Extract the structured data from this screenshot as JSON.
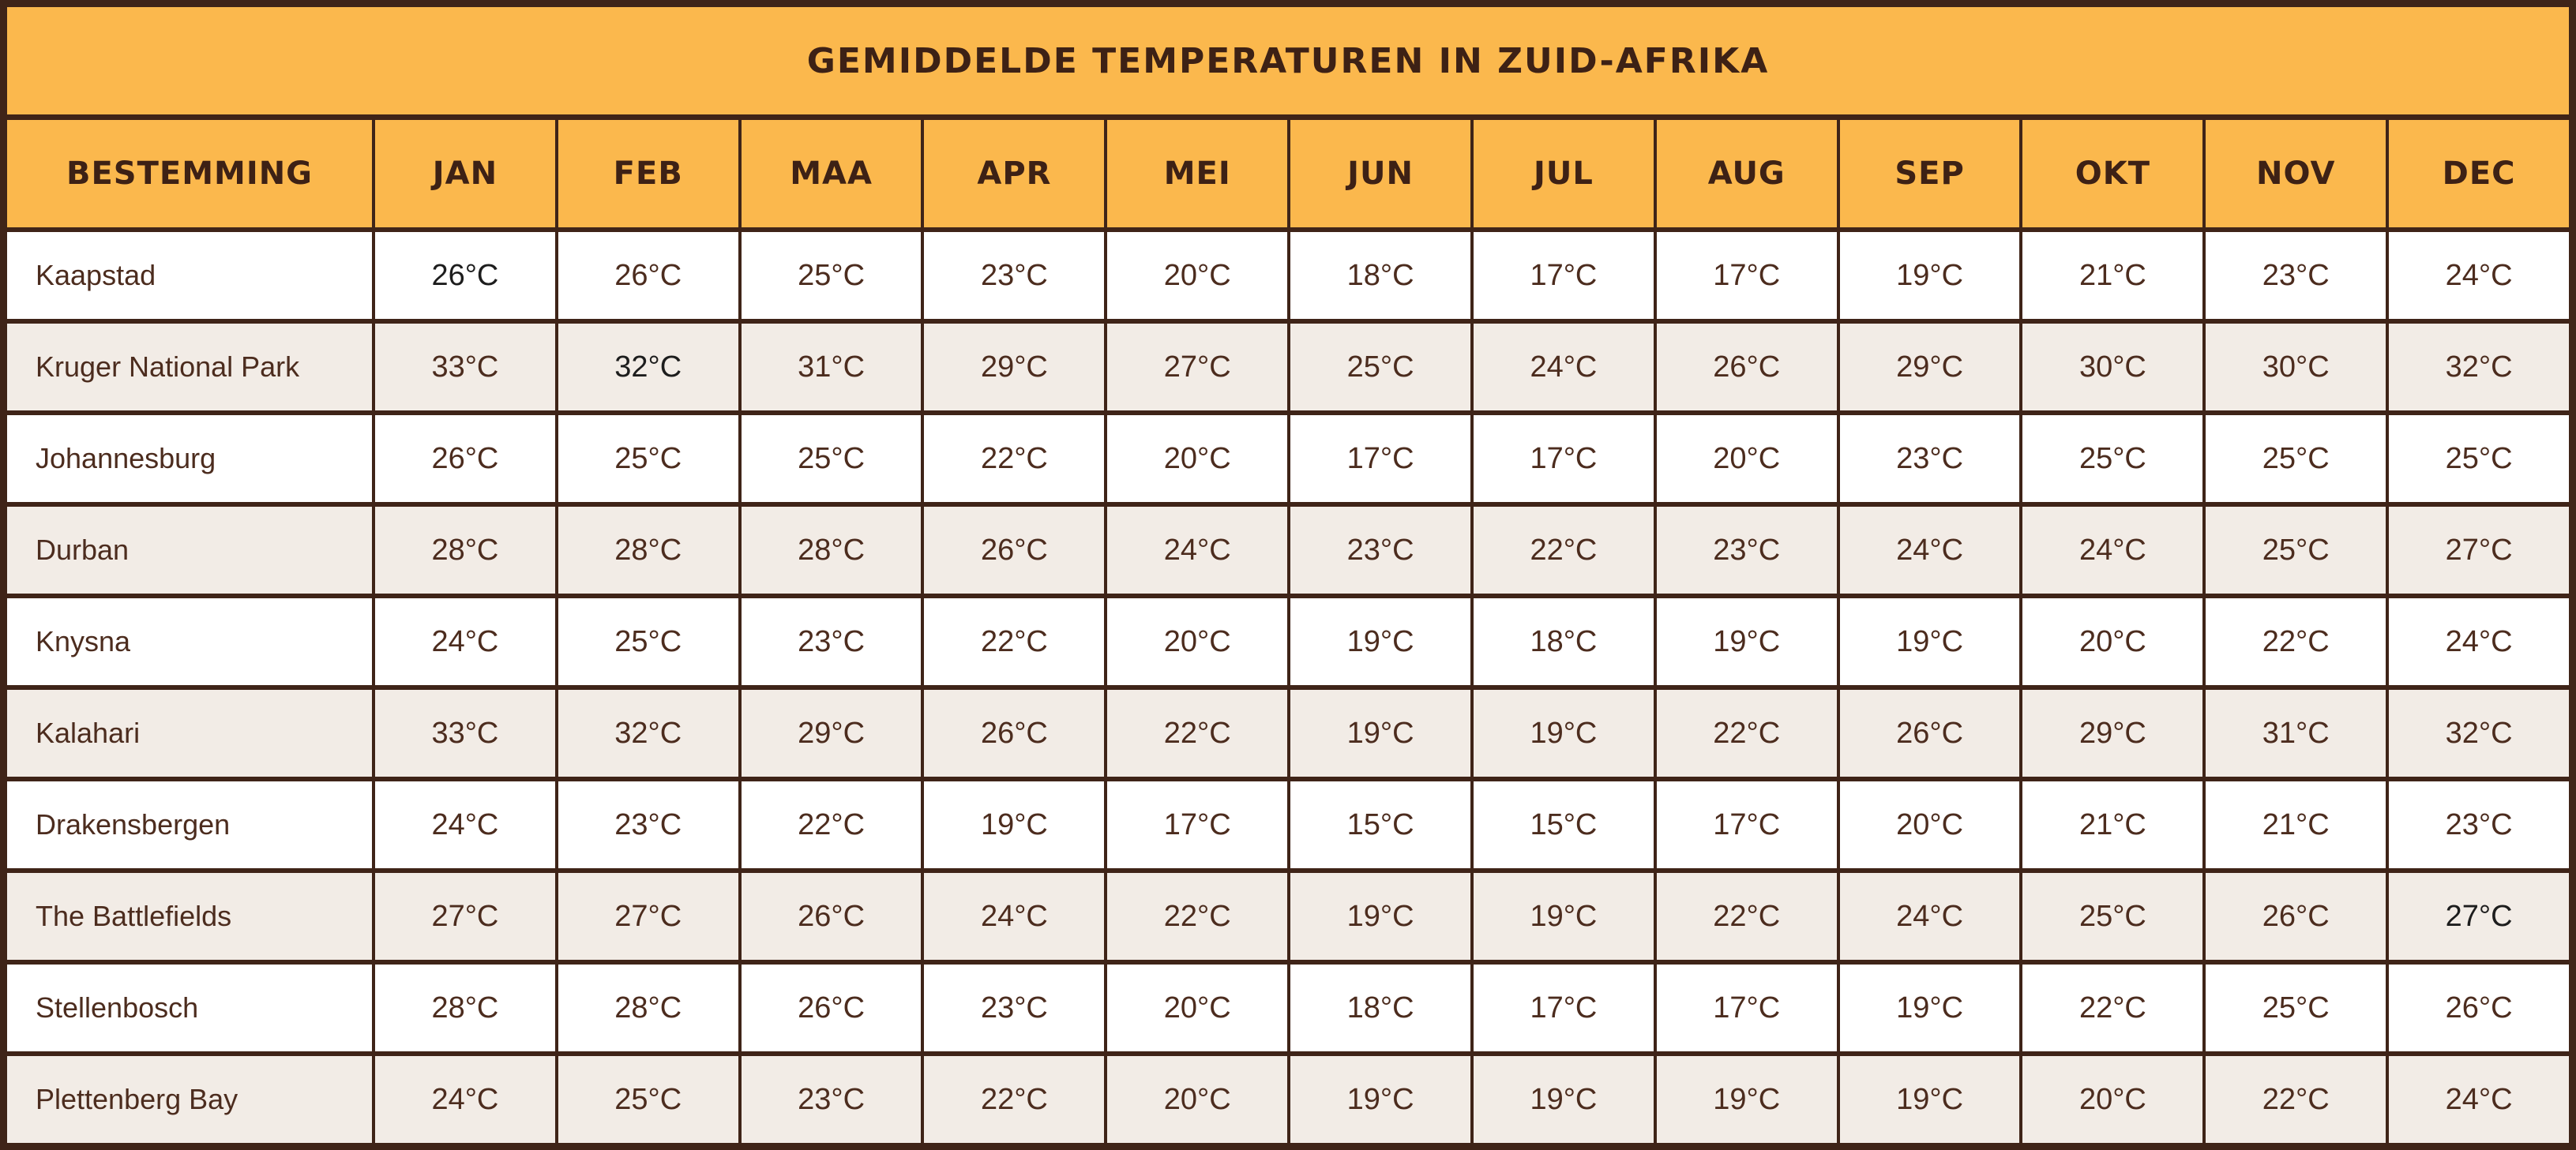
{
  "chart_data": {
    "type": "table",
    "title": "GEMIDDELDE TEMPERATUREN IN ZUID-AFRIKA",
    "row_header_label": "BESTEMMING",
    "columns": [
      "JAN",
      "FEB",
      "MAA",
      "APR",
      "MEI",
      "JUN",
      "JUL",
      "AUG",
      "SEP",
      "OKT",
      "NOV",
      "DEC"
    ],
    "unit": "°C",
    "rows": [
      {
        "destination": "Kaapstad",
        "values": [
          26,
          26,
          25,
          23,
          20,
          18,
          17,
          17,
          19,
          21,
          23,
          24
        ]
      },
      {
        "destination": "Kruger National Park",
        "values": [
          33,
          32,
          31,
          29,
          27,
          25,
          24,
          26,
          29,
          30,
          30,
          32
        ]
      },
      {
        "destination": "Johannesburg",
        "values": [
          26,
          25,
          25,
          22,
          20,
          17,
          17,
          20,
          23,
          25,
          25,
          25
        ]
      },
      {
        "destination": "Durban",
        "values": [
          28,
          28,
          28,
          26,
          24,
          23,
          22,
          23,
          24,
          24,
          25,
          27
        ]
      },
      {
        "destination": "Knysna",
        "values": [
          24,
          25,
          23,
          22,
          20,
          19,
          18,
          19,
          19,
          20,
          22,
          24
        ]
      },
      {
        "destination": "Kalahari",
        "values": [
          33,
          32,
          29,
          26,
          22,
          19,
          19,
          22,
          26,
          29,
          31,
          32
        ]
      },
      {
        "destination": "Drakensbergen",
        "values": [
          24,
          23,
          22,
          19,
          17,
          15,
          15,
          17,
          20,
          21,
          21,
          23
        ]
      },
      {
        "destination": "The Battlefields",
        "values": [
          27,
          27,
          26,
          24,
          22,
          19,
          19,
          22,
          24,
          25,
          26,
          27
        ]
      },
      {
        "destination": "Stellenbosch",
        "values": [
          28,
          28,
          26,
          23,
          20,
          18,
          17,
          17,
          19,
          22,
          25,
          26
        ]
      },
      {
        "destination": "Plettenberg Bay",
        "values": [
          24,
          25,
          23,
          22,
          20,
          19,
          19,
          19,
          19,
          20,
          22,
          24
        ]
      }
    ],
    "dark_text_cells": [
      [
        0,
        0
      ],
      [
        1,
        1
      ],
      [
        7,
        11
      ]
    ],
    "layout": {
      "striping": "alternating white/beige rows",
      "grid": "dark brown borders"
    }
  },
  "colors": {
    "border": "#3F2418",
    "header_bg": "#FBB84D",
    "header_text": "#3D2115",
    "body_text": "#4C2C1E",
    "dark_cell_text": "#1D1D1D",
    "row_even_bg": "#FFFFFF",
    "row_odd_bg": "#F2ECE6"
  }
}
